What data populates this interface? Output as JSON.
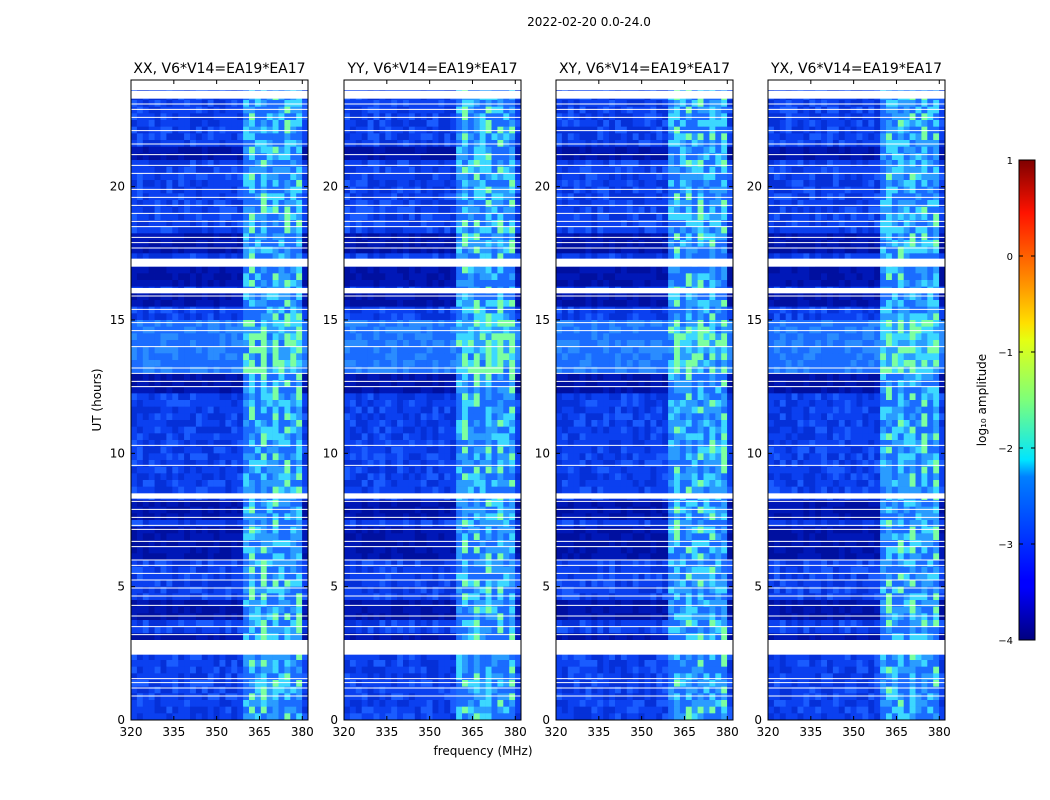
{
  "suptitle": "2022-02-20 0.0-24.0",
  "chart_data": {
    "type": "heatmap",
    "xlabel": "frequency (MHz)",
    "ylabel": "UT (hours)",
    "xlim": [
      320,
      382
    ],
    "ylim": [
      0,
      24
    ],
    "xticks": [
      320,
      335,
      350,
      365,
      380
    ],
    "yticks": [
      0,
      5,
      10,
      15,
      20
    ],
    "panels": [
      {
        "title": "XX, V6*V14=EA19*EA17"
      },
      {
        "title": "YY, V6*V14=EA19*EA17"
      },
      {
        "title": "XY, V6*V14=EA19*EA17"
      },
      {
        "title": "YX, V6*V14=EA19*EA17"
      }
    ],
    "rfi_band_mhz": [
      360,
      380
    ],
    "flagged_gaps_hours": [
      [
        2.45,
        3.0
      ],
      [
        17.0,
        17.3
      ],
      [
        16.0,
        16.2
      ],
      [
        8.3,
        8.5
      ],
      [
        23.3,
        23.6
      ]
    ],
    "colorbar": {
      "label": "log₁₀ amplitude",
      "range": [
        -4,
        1
      ],
      "ticks": [
        -4,
        -3,
        -2,
        -1,
        0,
        1
      ],
      "colormap": "jet"
    }
  }
}
